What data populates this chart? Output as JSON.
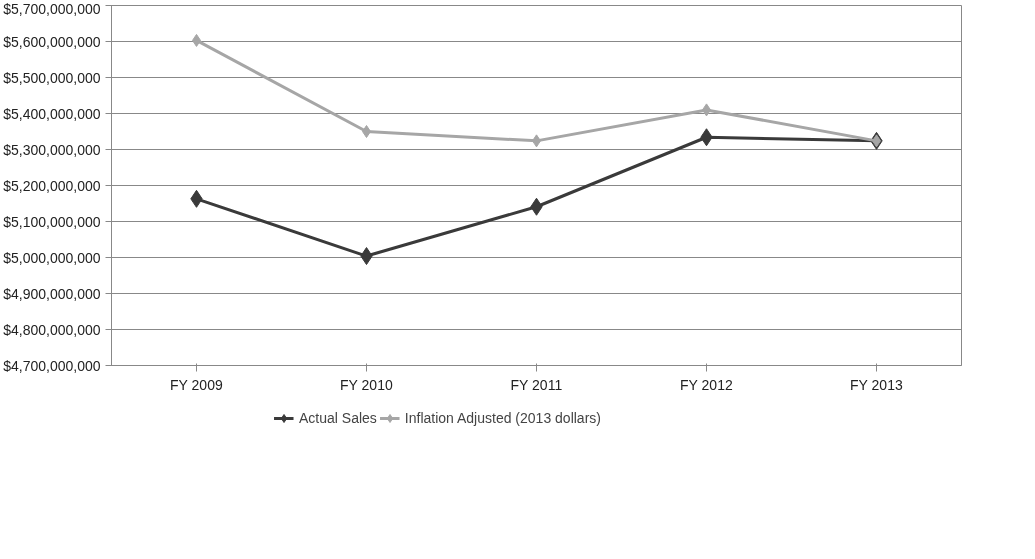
{
  "chart_data": {
    "type": "line",
    "categories": [
      "FY 2009",
      "FY 2010",
      "FY 2011",
      "FY 2012",
      "FY 2013"
    ],
    "series": [
      {
        "name": "Actual Sales",
        "color": "#3a3a3a",
        "values": [
          5163000000,
          5004000000,
          5141000000,
          5334000000,
          5324000000
        ]
      },
      {
        "name": "Inflation Adjusted (2013 dollars)",
        "color": "#a6a6a6",
        "values": [
          5603000000,
          5350000000,
          5324000000,
          5410000000,
          5324000000
        ]
      }
    ],
    "ylim": [
      4700000000,
      5700000000
    ],
    "yticks": [
      {
        "value": 4700000000,
        "label": "$4,700,000,000"
      },
      {
        "value": 4800000000,
        "label": "$4,800,000,000"
      },
      {
        "value": 4900000000,
        "label": "$4,900,000,000"
      },
      {
        "value": 5000000000,
        "label": "$5,000,000,000"
      },
      {
        "value": 5100000000,
        "label": "$5,100,000,000"
      },
      {
        "value": 5200000000,
        "label": "$5,200,000,000"
      },
      {
        "value": 5300000000,
        "label": "$5,300,000,000"
      },
      {
        "value": 5400000000,
        "label": "$5,400,000,000"
      },
      {
        "value": 5500000000,
        "label": "$5,500,000,000"
      },
      {
        "value": 5600000000,
        "label": "$5,600,000,000"
      },
      {
        "value": 5700000000,
        "label": "$5,700,000,000"
      }
    ],
    "grid": "y",
    "legend": "bottom",
    "marker": "diamond",
    "line_style": "solid"
  }
}
